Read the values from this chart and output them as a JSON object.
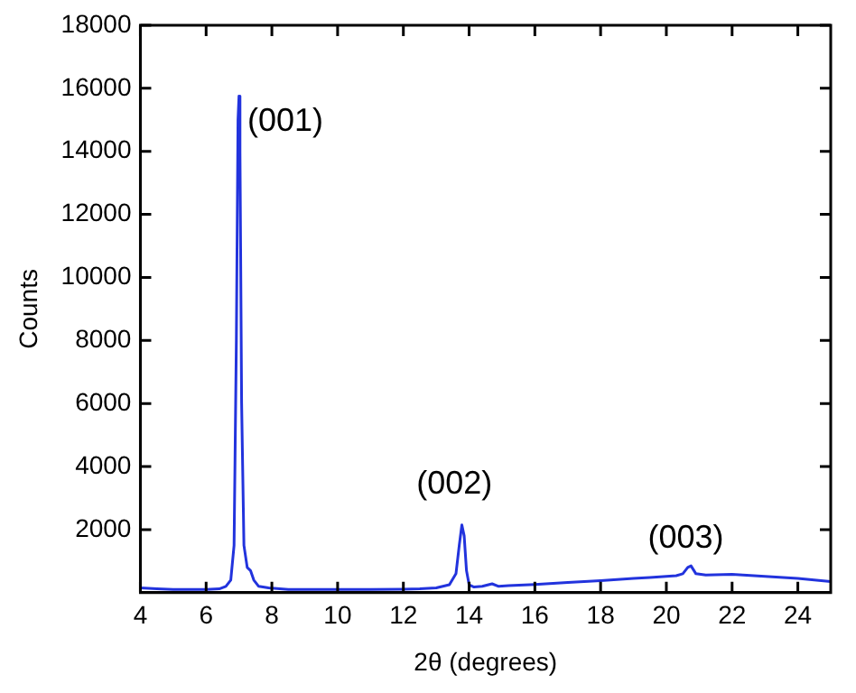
{
  "chart_data": {
    "type": "line",
    "xlabel": "2θ (degrees)",
    "ylabel": "Counts",
    "x": [
      4,
      4.5,
      5,
      5.5,
      6,
      6.4,
      6.6,
      6.75,
      6.85,
      6.92,
      6.97,
      7.0,
      7.03,
      7.08,
      7.15,
      7.25,
      7.35,
      7.45,
      7.6,
      7.9,
      8.5,
      9,
      10,
      11,
      12,
      12.5,
      13,
      13.4,
      13.6,
      13.7,
      13.78,
      13.85,
      13.92,
      14.0,
      14.15,
      14.4,
      14.7,
      14.9,
      15.2,
      16,
      17,
      18,
      19,
      19.5,
      20,
      20.3,
      20.5,
      20.65,
      20.75,
      20.9,
      21.2,
      22,
      23,
      24,
      25
    ],
    "series": [
      {
        "color": "#2233dd",
        "values": [
          150,
          120,
          100,
          100,
          100,
          120,
          200,
          400,
          1500,
          8000,
          15000,
          15750,
          14000,
          6000,
          1500,
          800,
          700,
          400,
          200,
          150,
          100,
          100,
          100,
          100,
          110,
          120,
          150,
          250,
          600,
          1500,
          2150,
          1800,
          700,
          250,
          180,
          200,
          280,
          200,
          220,
          260,
          320,
          380,
          450,
          480,
          520,
          540,
          600,
          800,
          850,
          600,
          560,
          580,
          520,
          450,
          350
        ]
      }
    ],
    "annotations": [
      "(001)",
      "(002)",
      "(003)"
    ],
    "xlim": [
      4,
      25
    ],
    "xticks": [
      4,
      6,
      8,
      10,
      12,
      14,
      16,
      18,
      20,
      22,
      24
    ],
    "ylim": [
      0,
      18000
    ],
    "yticks": [
      2000,
      4000,
      6000,
      8000,
      10000,
      12000,
      14000,
      16000,
      18000
    ],
    "grid": false,
    "legend": false,
    "marker": "none",
    "line_style": "solid"
  }
}
